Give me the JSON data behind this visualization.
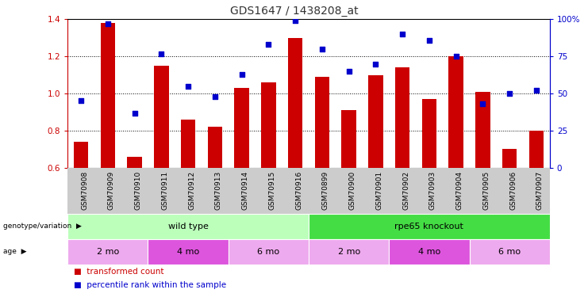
{
  "title": "GDS1647 / 1438208_at",
  "samples": [
    "GSM70908",
    "GSM70909",
    "GSM70910",
    "GSM70911",
    "GSM70912",
    "GSM70913",
    "GSM70914",
    "GSM70915",
    "GSM70916",
    "GSM70899",
    "GSM70900",
    "GSM70901",
    "GSM70902",
    "GSM70903",
    "GSM70904",
    "GSM70905",
    "GSM70906",
    "GSM70907"
  ],
  "bar_values": [
    0.74,
    1.38,
    0.66,
    1.15,
    0.86,
    0.82,
    1.03,
    1.06,
    1.3,
    1.09,
    0.91,
    1.1,
    1.14,
    0.97,
    1.2,
    1.01,
    0.7,
    0.8
  ],
  "dot_values": [
    45,
    97,
    37,
    77,
    55,
    48,
    63,
    83,
    99,
    80,
    65,
    70,
    90,
    86,
    75,
    43,
    50,
    52
  ],
  "ylim_left": [
    0.6,
    1.4
  ],
  "ylim_right": [
    0,
    100
  ],
  "yticks_left": [
    0.6,
    0.8,
    1.0,
    1.2,
    1.4
  ],
  "yticks_right": [
    0,
    25,
    50,
    75,
    100
  ],
  "ytick_labels_right": [
    "0",
    "25",
    "50",
    "75",
    "100%"
  ],
  "bar_color": "#cc0000",
  "dot_color": "#0000cc",
  "bar_bottom": 0.6,
  "genotype_groups": [
    {
      "label": "wild type",
      "start": 0,
      "end": 9,
      "color": "#bbffbb"
    },
    {
      "label": "rpe65 knockout",
      "start": 9,
      "end": 18,
      "color": "#44dd44"
    }
  ],
  "age_groups": [
    {
      "label": "2 mo",
      "start": 0,
      "end": 3,
      "color": "#eeaaee"
    },
    {
      "label": "4 mo",
      "start": 3,
      "end": 6,
      "color": "#dd55dd"
    },
    {
      "label": "6 mo",
      "start": 6,
      "end": 9,
      "color": "#eeaaee"
    },
    {
      "label": "2 mo",
      "start": 9,
      "end": 12,
      "color": "#eeaaee"
    },
    {
      "label": "4 mo",
      "start": 12,
      "end": 15,
      "color": "#dd55dd"
    },
    {
      "label": "6 mo",
      "start": 15,
      "end": 18,
      "color": "#eeaaee"
    }
  ],
  "legend_items": [
    {
      "label": "transformed count",
      "color": "#cc0000"
    },
    {
      "label": "percentile rank within the sample",
      "color": "#0000cc"
    }
  ],
  "sample_bg": "#cccccc",
  "grid_color": "#000000"
}
